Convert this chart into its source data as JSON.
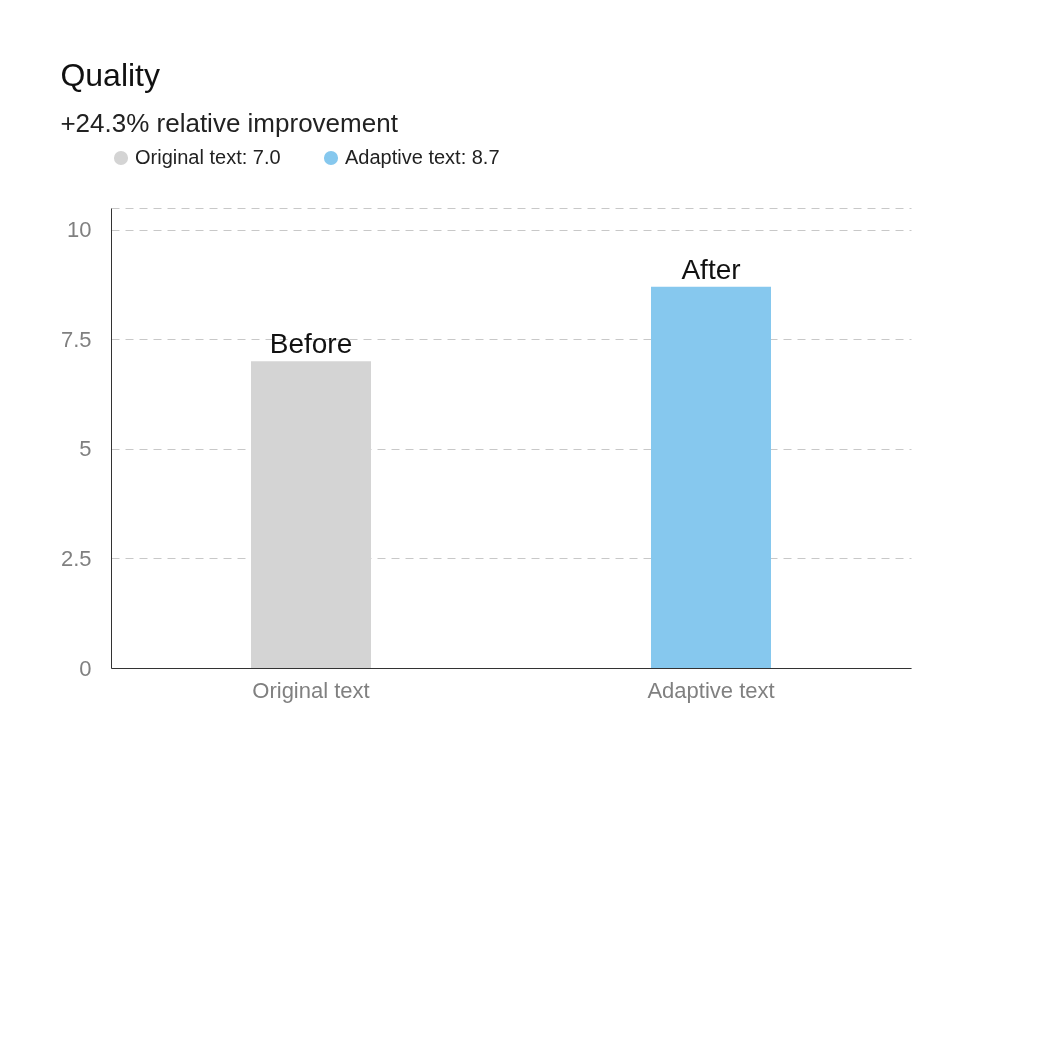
{
  "chart_data": {
    "type": "bar",
    "title": "Quality",
    "subtitle": "+24.3% relative improvement",
    "categories": [
      "Original text",
      "Adaptive text"
    ],
    "series": [
      {
        "name": "Original text: 7.0",
        "color": "#d4d4d4",
        "values": [
          7.0,
          null
        ],
        "value_labels": [
          "Before",
          null
        ]
      },
      {
        "name": "Adaptive text: 8.7",
        "color": "#86c8ee",
        "values": [
          null,
          8.7
        ],
        "value_labels": [
          null,
          "After"
        ]
      }
    ],
    "ylim": [
      0,
      10.5
    ],
    "yticks": [
      0,
      2.5,
      5,
      7.5,
      10,
      {
        "value": 10.5,
        "label": null
      }
    ],
    "grid": "y",
    "legend": "top left"
  }
}
